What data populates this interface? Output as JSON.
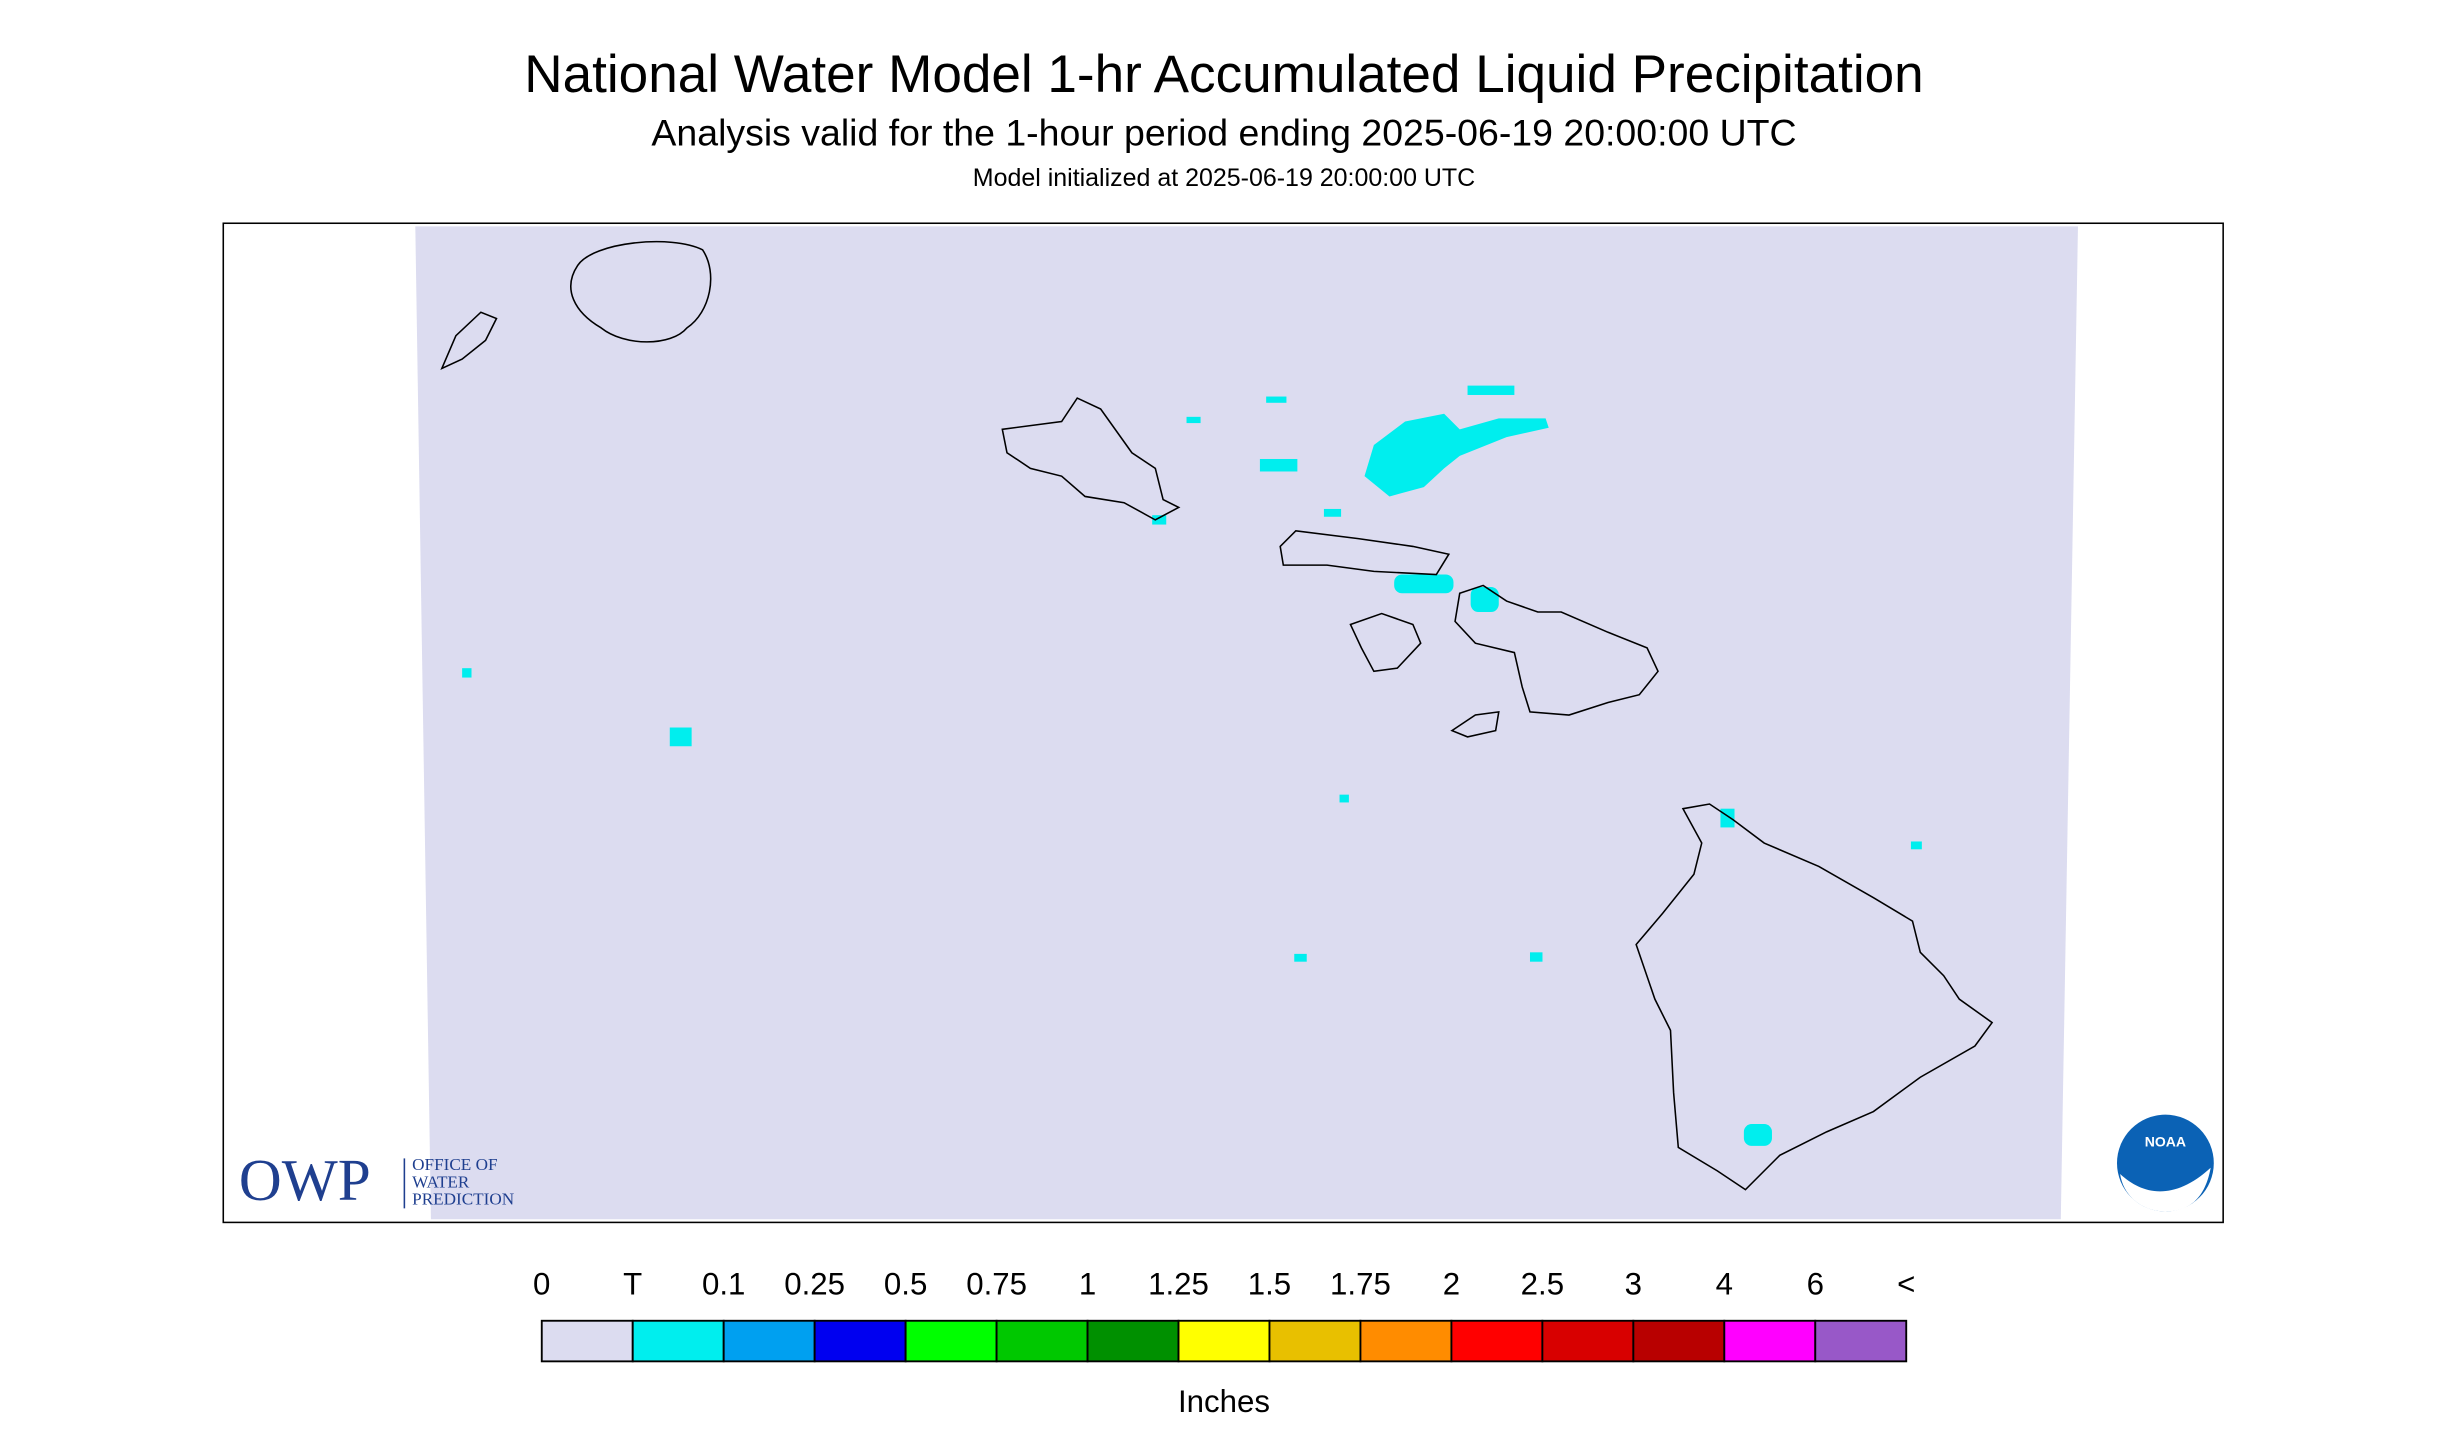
{
  "header": {
    "title": "National Water Model 1-hr Accumulated Liquid Precipitation",
    "subtitle": "Analysis valid for the 1-hour period ending 2025-06-19 20:00:00 UTC",
    "init": "Model initialized at 2025-06-19 20:00:00 UTC"
  },
  "legend": {
    "labels": [
      "0",
      "T",
      "0.1",
      "0.25",
      "0.5",
      "0.75",
      "1",
      "1.25",
      "1.5",
      "1.75",
      "2",
      "2.5",
      "3",
      "4",
      "6",
      "<"
    ],
    "colors": [
      "#dcdcf0",
      "#00eeee",
      "#00a0f0",
      "#0000f0",
      "#00ff00",
      "#00c800",
      "#009000",
      "#ffff00",
      "#e8c000",
      "#ff8c00",
      "#ff0000",
      "#d80000",
      "#b80000",
      "#ff00ff",
      "#9858c8"
    ],
    "unit": "Inches"
  },
  "logos": {
    "owp": "OWP",
    "owp_lines": [
      "OFFICE OF",
      "WATER",
      "PREDICTION"
    ],
    "noaa": "NOAA"
  }
}
